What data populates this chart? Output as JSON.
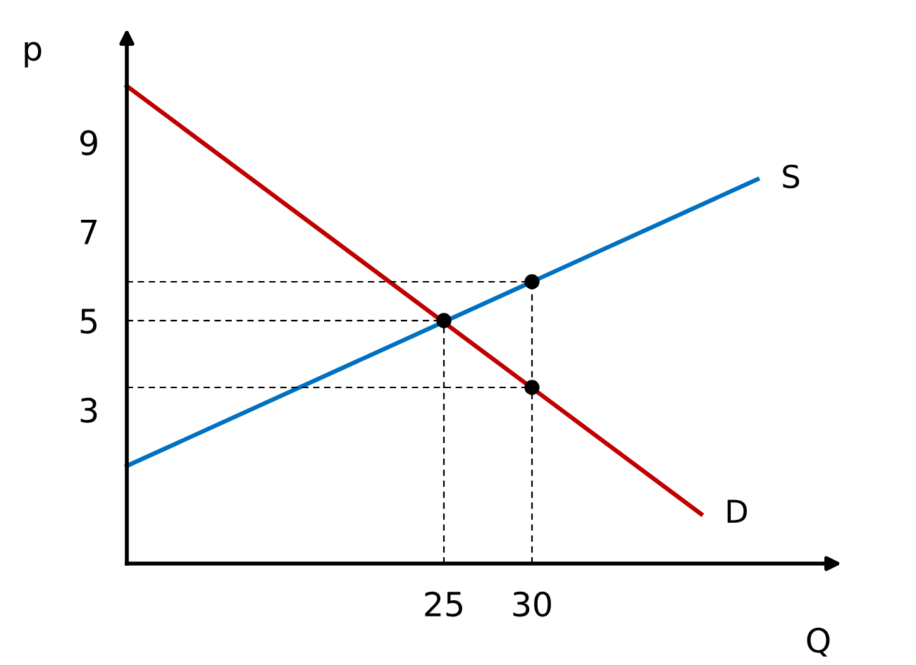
{
  "chart_data": {
    "type": "line",
    "xlabel": "Q",
    "ylabel": "p",
    "xlim": [
      7,
      47
    ],
    "ylim": [
      -0.45,
      11.4
    ],
    "xticks": [
      25,
      30
    ],
    "yticks": [
      3,
      5,
      7,
      9
    ],
    "grid": false,
    "legend": false,
    "series": [
      {
        "name": "D",
        "color": "#c00000",
        "x": [
          7,
          39.6
        ],
        "values": [
          10.26,
          0.66
        ]
      },
      {
        "name": "S",
        "color": "#0070c0",
        "x": [
          7,
          42.8
        ],
        "values": [
          1.74,
          8.17
        ]
      },
      {
        "color": "#000000",
        "line_style": "dashed",
        "x": [
          7,
          30
        ],
        "values": [
          5.87,
          5.87
        ]
      },
      {
        "color": "#000000",
        "line_style": "dashed",
        "x": [
          7,
          25
        ],
        "values": [
          5,
          5
        ]
      },
      {
        "color": "#000000",
        "line_style": "dashed",
        "x": [
          7,
          30
        ],
        "values": [
          3.5,
          3.5
        ]
      },
      {
        "color": "#000000",
        "line_style": "dashed",
        "x": [
          25,
          25
        ],
        "values": [
          -0.45,
          5
        ]
      },
      {
        "color": "#000000",
        "line_style": "dashed",
        "x": [
          30,
          30
        ],
        "values": [
          -0.45,
          5.87
        ]
      },
      {
        "type": "scatter",
        "color": "#000000",
        "marker": "circle",
        "x": [
          25,
          30,
          30
        ],
        "values": [
          5,
          5.87,
          3.5
        ]
      }
    ]
  }
}
